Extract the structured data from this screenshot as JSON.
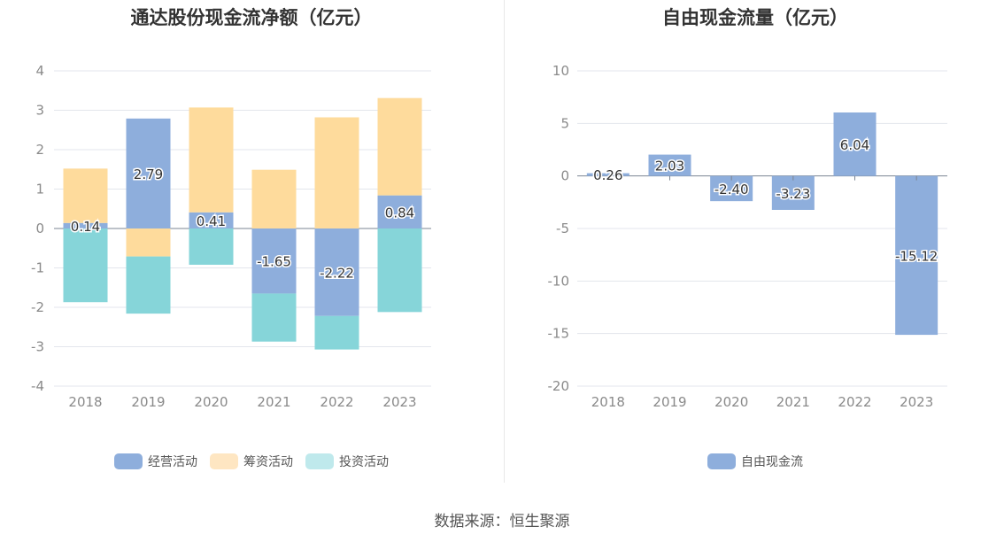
{
  "source_text": "数据来源：恒生聚源",
  "chart_data": [
    {
      "type": "bar",
      "stacked": true,
      "title": "通达股份现金流净额（亿元）",
      "categories": [
        "2018",
        "2019",
        "2020",
        "2021",
        "2022",
        "2023"
      ],
      "ylim": [
        -4,
        4
      ],
      "yticks": [
        -4,
        -3,
        -2,
        -1,
        0,
        1,
        2,
        3,
        4
      ],
      "grid": true,
      "legend_position": "bottom",
      "series": [
        {
          "name": "经营活动",
          "color": "#8eaedc",
          "values": [
            0.14,
            2.79,
            0.41,
            -1.65,
            -2.22,
            0.84
          ],
          "labels": [
            "0.14",
            "2.79",
            "0.41",
            "-1.65",
            "-2.22",
            "0.84"
          ]
        },
        {
          "name": "筹资活动",
          "color": "#fedb9c",
          "values": [
            1.38,
            -0.71,
            2.66,
            1.49,
            2.82,
            2.47
          ]
        },
        {
          "name": "投资活动",
          "color": "#86d5d9",
          "values": [
            -1.87,
            -1.45,
            -0.92,
            -1.22,
            -0.85,
            -2.12
          ]
        }
      ],
      "legend_colors": [
        "#8eaedc",
        "#fee6c2",
        "#bfe9ec"
      ]
    },
    {
      "type": "bar",
      "title": "自由现金流量（亿元）",
      "categories": [
        "2018",
        "2019",
        "2020",
        "2021",
        "2022",
        "2023"
      ],
      "ylim": [
        -20,
        10
      ],
      "yticks": [
        -20,
        -15,
        -10,
        -5,
        0,
        5,
        10
      ],
      "grid": true,
      "legend_position": "bottom",
      "series": [
        {
          "name": "自由现金流",
          "color": "#8eaedc",
          "values": [
            0.26,
            2.03,
            -2.4,
            -3.23,
            6.04,
            -15.12
          ],
          "labels": [
            "0.26",
            "2.03",
            "-2.40",
            "-3.23",
            "6.04",
            "-15.12"
          ]
        }
      ],
      "legend_colors": [
        "#8eaedc"
      ]
    }
  ]
}
